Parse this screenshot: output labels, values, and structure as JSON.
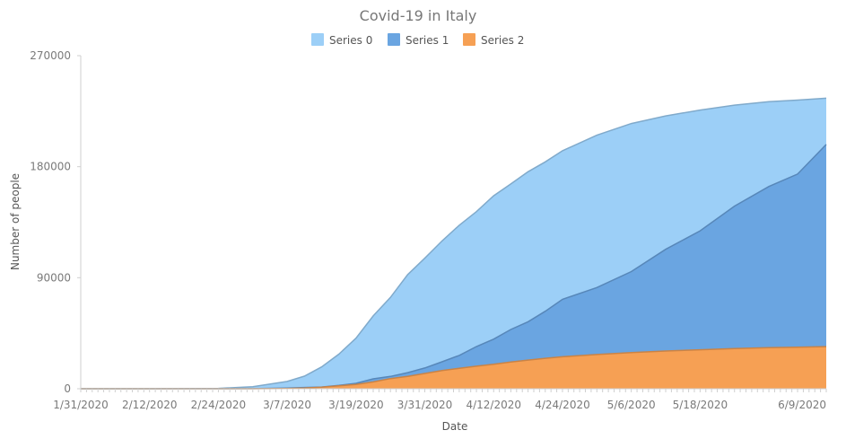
{
  "chart_data": {
    "type": "area",
    "title": "Covid-19 in Italy",
    "xlabel": "Date",
    "ylabel": "Number of people",
    "ylim": [
      0,
      270000
    ],
    "yticks": [
      0,
      90000,
      180000,
      270000
    ],
    "yticks_text": [
      "0",
      "90000",
      "180000",
      "270000"
    ],
    "xticks": [
      "1/31/2020",
      "2/12/2020",
      "2/24/2020",
      "3/7/2020",
      "3/19/2020",
      "3/31/2020",
      "4/12/2020",
      "4/24/2020",
      "5/6/2020",
      "5/18/2020",
      "6/9/2020"
    ],
    "x": [
      "1/31/2020",
      "2/12/2020",
      "2/24/2020",
      "3/1/2020",
      "3/7/2020",
      "3/10/2020",
      "3/13/2020",
      "3/16/2020",
      "3/19/2020",
      "3/22/2020",
      "3/25/2020",
      "3/28/2020",
      "3/31/2020",
      "4/3/2020",
      "4/6/2020",
      "4/9/2020",
      "4/12/2020",
      "4/15/2020",
      "4/18/2020",
      "4/21/2020",
      "4/24/2020",
      "4/30/2020",
      "5/6/2020",
      "5/12/2020",
      "5/18/2020",
      "5/24/2020",
      "5/30/2020",
      "6/4/2020",
      "6/9/2020"
    ],
    "series": [
      {
        "name": "Series 0",
        "color": "#9ccff7",
        "values": [
          0,
          0,
          300,
          1700,
          5900,
          10200,
          17700,
          28000,
          41000,
          59000,
          74000,
          92500,
          105800,
          119800,
          132500,
          143600,
          156400,
          166000,
          175900,
          183900,
          192900,
          205500,
          215000,
          221200,
          225900,
          229900,
          232700,
          234000,
          235500
        ]
      },
      {
        "name": "Series 1",
        "color": "#6aa5e1",
        "values": [
          0,
          0,
          0,
          50,
          600,
          1000,
          1400,
          2700,
          4400,
          8000,
          10000,
          13000,
          16800,
          21800,
          27000,
          34200,
          40200,
          48000,
          54300,
          62800,
          72500,
          82000,
          95000,
          113000,
          128000,
          148000,
          164000,
          174000,
          198000
        ]
      },
      {
        "name": "Series 2",
        "color": "#f6a054",
        "values": [
          0,
          0,
          0,
          30,
          200,
          600,
          1300,
          2400,
          3400,
          5500,
          8200,
          10000,
          12400,
          14700,
          16500,
          18300,
          19900,
          21600,
          23200,
          24700,
          25900,
          27700,
          29300,
          30600,
          31600,
          32500,
          33300,
          33700,
          34100
        ]
      }
    ],
    "legend": "top-center",
    "grid": false
  }
}
